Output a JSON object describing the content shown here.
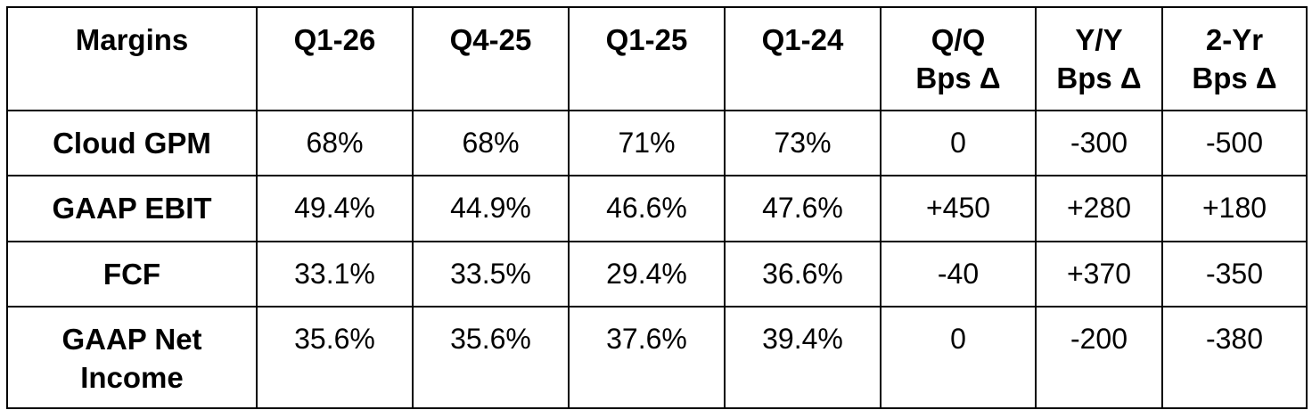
{
  "table": {
    "header": [
      "Margins",
      "Q1-26",
      "Q4-25",
      "Q1-25",
      "Q1-24",
      "Q/Q\nBps Δ",
      "Y/Y\nBps Δ",
      "2-Yr\nBps Δ"
    ],
    "rows": [
      [
        "Cloud GPM",
        "68%",
        "68%",
        "71%",
        "73%",
        "0",
        "-300",
        "-500"
      ],
      [
        "GAAP EBIT",
        "49.4%",
        "44.9%",
        "46.6%",
        "47.6%",
        "+450",
        "+280",
        "+180"
      ],
      [
        "FCF",
        "33.1%",
        "33.5%",
        "29.4%",
        "36.6%",
        "-40",
        "+370",
        "-350"
      ],
      [
        "GAAP Net\nIncome",
        "35.6%",
        "35.6%",
        "37.6%",
        "39.4%",
        "0",
        "-200",
        "-380"
      ]
    ]
  }
}
